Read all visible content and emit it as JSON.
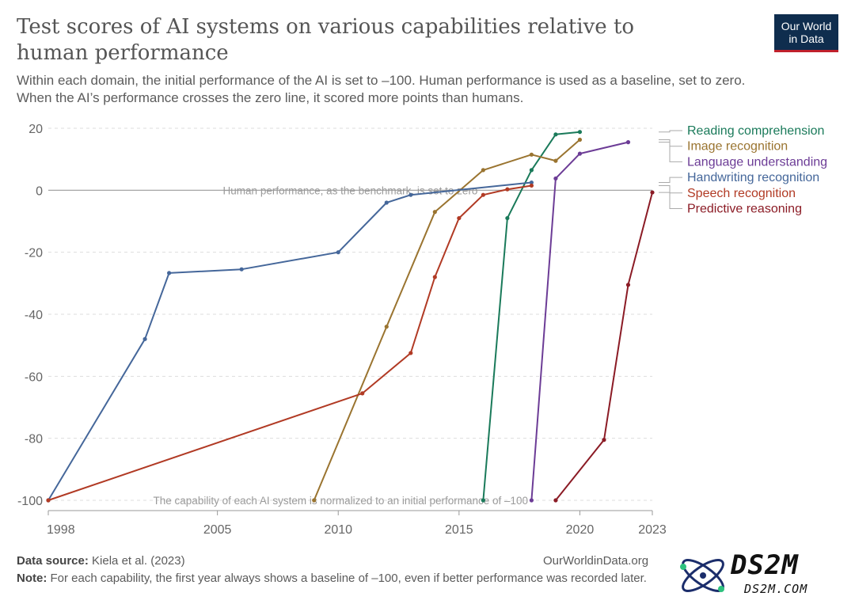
{
  "title": "Test scores of AI systems on various capabilities relative to human performance",
  "subtitle_line1": "Within each domain, the initial performance of the AI is set to –100. Human performance is used as a baseline, set to zero.",
  "subtitle_line2": "When the AI’s performance crosses the zero line, it scored more points than humans.",
  "logo_line1": "Our World",
  "logo_line2": "in Data",
  "footer": {
    "source_label": "Data source:",
    "source_text": " Kiela et al. (2023)",
    "note_label": "Note:",
    "note_text": " For each capability, the first year always shows a baseline of –100, even if better performance was recorded later.",
    "url": "OurWorldinData.org"
  },
  "watermark": {
    "brand": "DS2M",
    "sub": "DS2M.COM"
  },
  "chart_data": {
    "type": "line",
    "title": "Test scores of AI systems on various capabilities relative to human performance",
    "xlabel": "",
    "ylabel": "",
    "xlim": [
      1998,
      2023
    ],
    "ylim": [
      -100,
      20
    ],
    "x_ticks": [
      1998,
      2005,
      2010,
      2015,
      2020,
      2023
    ],
    "y_ticks": [
      20,
      0,
      -20,
      -40,
      -60,
      -80,
      -100
    ],
    "y_tick_labels": [
      "20",
      "0",
      "-20",
      "-40",
      "-60",
      "-80",
      "-100"
    ],
    "grid": true,
    "annotations": [
      {
        "text": "Human performance, as the benchmark, is set to zero",
        "x": 2010.5,
        "y": 0
      },
      {
        "text": "The capability of each AI system is normalized to an initial performance of –100",
        "x": 2010.1,
        "y": -100
      }
    ],
    "series": [
      {
        "name": "Reading comprehension",
        "color": "#1a7a5a",
        "points": [
          [
            2016,
            -100
          ],
          [
            2017,
            -9
          ],
          [
            2018,
            6.5
          ],
          [
            2019,
            18
          ],
          [
            2020,
            18.8
          ]
        ]
      },
      {
        "name": "Image recognition",
        "color": "#9a7430",
        "points": [
          [
            2009,
            -100
          ],
          [
            2012,
            -44
          ],
          [
            2014,
            -7
          ],
          [
            2016,
            6.5
          ],
          [
            2018,
            11.5
          ],
          [
            2019,
            9.5
          ],
          [
            2020,
            16.3
          ]
        ]
      },
      {
        "name": "Language understanding",
        "color": "#6c3c96",
        "points": [
          [
            2018,
            -100
          ],
          [
            2019,
            3.8
          ],
          [
            2020,
            11.8
          ],
          [
            2022,
            15.5
          ]
        ]
      },
      {
        "name": "Handwriting recognition",
        "color": "#45679a",
        "points": [
          [
            1998,
            -100
          ],
          [
            2002,
            -48
          ],
          [
            2003,
            -26.7
          ],
          [
            2006,
            -25.5
          ],
          [
            2010,
            -20
          ],
          [
            2012,
            -4
          ],
          [
            2013,
            -1.5
          ],
          [
            2018,
            2.5
          ]
        ]
      },
      {
        "name": "Speech recognition",
        "color": "#b13a24",
        "points": [
          [
            1998,
            -100
          ],
          [
            2011,
            -65.5
          ],
          [
            2013,
            -52.5
          ],
          [
            2014,
            -28
          ],
          [
            2015,
            -9
          ],
          [
            2016,
            -1.5
          ],
          [
            2017,
            0.3
          ],
          [
            2018,
            1.5
          ]
        ]
      },
      {
        "name": "Predictive reasoning",
        "color": "#8b1b25",
        "points": [
          [
            2019,
            -100
          ],
          [
            2021,
            -80.5
          ],
          [
            2022,
            -30.5
          ],
          [
            2023,
            -0.7
          ]
        ]
      }
    ]
  }
}
